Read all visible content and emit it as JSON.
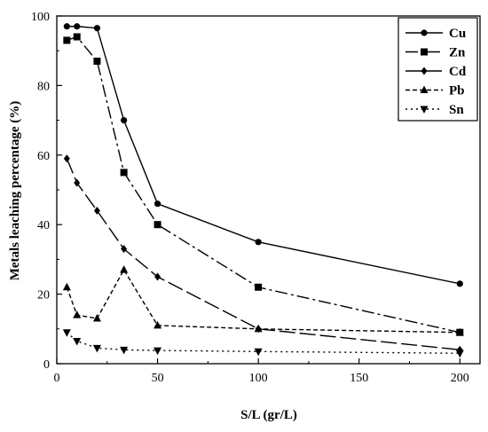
{
  "chart_data": {
    "type": "line",
    "title": "",
    "xlabel": "S/L (gr/L)",
    "ylabel": "Metals leaching percentage (%)",
    "xlim": [
      0,
      210
    ],
    "ylim": [
      0,
      100
    ],
    "xticks": [
      "0",
      "50",
      "100",
      "150",
      "200"
    ],
    "yticks": [
      "0",
      "20",
      "40",
      "60",
      "80",
      "100"
    ],
    "grid": false,
    "legend_position": "top-right",
    "x": [
      5,
      10,
      20,
      33.3,
      50,
      100,
      200
    ],
    "series": [
      {
        "name": "Cu",
        "marker": "circle",
        "dash": "solid",
        "values": [
          97,
          97,
          96.5,
          70,
          46,
          35,
          23
        ]
      },
      {
        "name": "Zn",
        "marker": "square",
        "dash": "dashdot",
        "values": [
          93,
          94,
          87,
          55,
          40,
          22,
          9
        ]
      },
      {
        "name": "Cd",
        "marker": "diamond",
        "dash": "longdash",
        "values": [
          59,
          52,
          44,
          33,
          25,
          10,
          4
        ]
      },
      {
        "name": "Pb",
        "marker": "triangle-up",
        "dash": "dashed",
        "values": [
          22,
          14,
          13,
          27,
          11,
          10,
          9
        ]
      },
      {
        "name": "Sn",
        "marker": "triangle-down",
        "dash": "dotted",
        "values": [
          9,
          6.5,
          4.5,
          4,
          3.8,
          3.5,
          3
        ]
      }
    ]
  }
}
